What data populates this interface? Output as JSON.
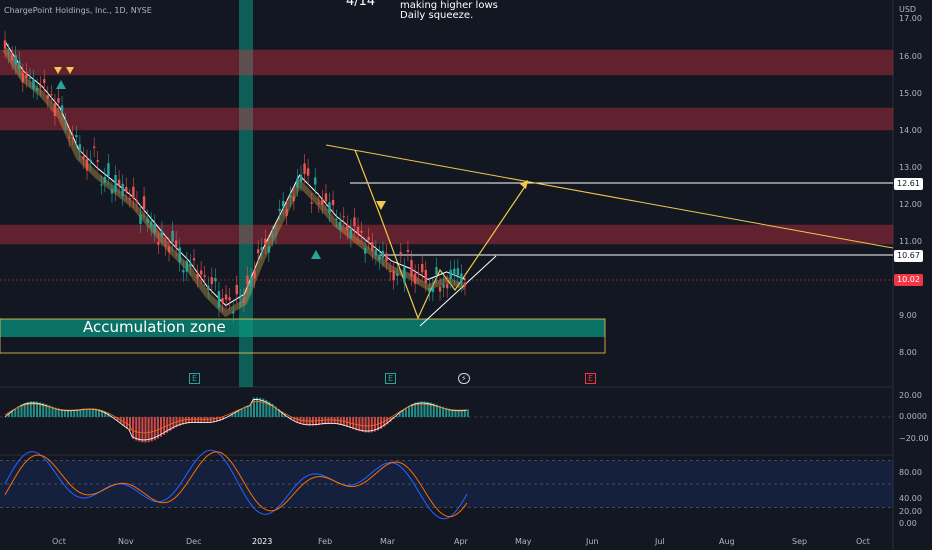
{
  "header": {
    "symbol_title": "ChargePoint Holdings, Inc., 1D, NYSE",
    "note_big": "4/14",
    "note_line1": "making higher lows",
    "note_line2": "Daily squeeze."
  },
  "annotations": {
    "zone_label": "Accumulation zone"
  },
  "chart_data": [
    {
      "type": "line",
      "panel": "price",
      "ylabel": "USD",
      "y_ticks": [
        "17.00",
        "16.00",
        "15.00",
        "14.00",
        "13.00",
        "12.00",
        "11.00",
        "9.00",
        "8.00"
      ],
      "ylim": [
        7.6,
        17.5
      ],
      "x_ticks": [
        "Oct",
        "Nov",
        "Dec",
        "2023",
        "Feb",
        "Mar",
        "Apr",
        "May",
        "Jun",
        "Jul",
        "Aug",
        "Sep",
        "Oct"
      ],
      "series": [
        {
          "values": [
            16.4,
            15.6,
            15.2,
            14.6,
            13.5,
            13.0,
            12.6,
            12.2,
            11.6,
            11.0,
            10.5,
            9.8,
            9.3,
            9.6,
            10.8,
            11.8,
            12.8,
            12.3,
            11.7,
            11.3,
            10.9,
            10.5,
            10.3,
            10.0,
            10.2,
            10.0
          ]
        }
      ],
      "price_tags": [
        "12.61",
        "10.67",
        "10.02"
      ],
      "event_markers": [
        "E",
        "E",
        "⚡",
        "E"
      ]
    },
    {
      "type": "bar",
      "panel": "squeeze-momentum",
      "y_ticks": [
        "20.00",
        "0.0000",
        "−20.00"
      ],
      "ylim": [
        -30,
        25
      ]
    },
    {
      "type": "line",
      "panel": "stoch-rsi",
      "y_ticks": [
        "80.00",
        "40.00",
        "20.00",
        "0.00"
      ],
      "ylim": [
        -5,
        100
      ]
    }
  ],
  "colors": {
    "background": "#131722",
    "resistance_zone": "#f23645",
    "accumulation_zone": "#089981",
    "accent_yellow": "#f0c84a",
    "stoch_k": "#2962ff",
    "stoch_d": "#ff6d00"
  }
}
